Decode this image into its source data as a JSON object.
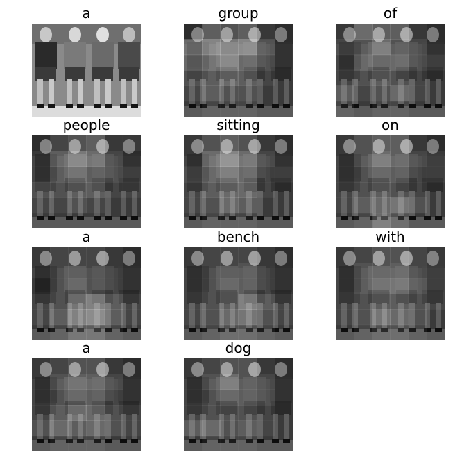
{
  "figure": {
    "title": "",
    "panels": [
      {
        "word": "a",
        "image": "original-photo",
        "attention": null
      },
      {
        "word": "group",
        "image": "attention-overlay",
        "attention": [
          [
            0.2,
            0.6,
            0.5,
            0.6,
            0.3,
            0.2
          ],
          [
            0.7,
            0.9,
            0.8,
            0.9,
            0.5,
            0.2
          ],
          [
            0.6,
            0.7,
            0.8,
            0.6,
            0.4,
            0.2
          ],
          [
            0.4,
            0.5,
            0.6,
            0.5,
            0.3,
            0.2
          ],
          [
            0.3,
            0.5,
            0.4,
            0.4,
            0.2,
            0.1
          ],
          [
            0.2,
            0.3,
            0.3,
            0.3,
            0.2,
            0.1
          ]
        ]
      },
      {
        "word": "of",
        "image": "attention-overlay",
        "attention": [
          [
            0.3,
            0.7,
            0.6,
            0.6,
            0.3,
            0.2
          ],
          [
            0.4,
            0.5,
            0.7,
            0.5,
            0.4,
            0.2
          ],
          [
            0.3,
            0.6,
            0.5,
            0.6,
            0.4,
            0.3
          ],
          [
            0.3,
            0.4,
            0.5,
            0.4,
            0.3,
            0.2
          ],
          [
            0.5,
            0.3,
            0.4,
            0.6,
            0.3,
            0.2
          ],
          [
            0.3,
            0.2,
            0.3,
            0.3,
            0.2,
            0.1
          ]
        ]
      },
      {
        "word": "people",
        "image": "attention-overlay",
        "attention": [
          [
            0.2,
            0.4,
            0.5,
            0.6,
            0.3,
            0.3
          ],
          [
            0.3,
            0.6,
            0.8,
            0.7,
            0.4,
            0.2
          ],
          [
            0.3,
            0.5,
            0.6,
            0.5,
            0.4,
            0.3
          ],
          [
            0.4,
            0.4,
            0.5,
            0.5,
            0.3,
            0.3
          ],
          [
            0.3,
            0.3,
            0.4,
            0.3,
            0.2,
            0.2
          ],
          [
            0.2,
            0.2,
            0.2,
            0.2,
            0.1,
            0.1
          ]
        ]
      },
      {
        "word": "sitting",
        "image": "attention-overlay",
        "attention": [
          [
            0.3,
            0.5,
            0.6,
            0.5,
            0.3,
            0.2
          ],
          [
            0.3,
            0.7,
            0.9,
            0.7,
            0.4,
            0.2
          ],
          [
            0.4,
            0.6,
            0.7,
            0.6,
            0.3,
            0.3
          ],
          [
            0.3,
            0.5,
            0.6,
            0.6,
            0.3,
            0.2
          ],
          [
            0.3,
            0.4,
            0.6,
            0.5,
            0.2,
            0.2
          ],
          [
            0.2,
            0.3,
            0.3,
            0.3,
            0.2,
            0.1
          ]
        ]
      },
      {
        "word": "on",
        "image": "attention-overlay",
        "attention": [
          [
            0.3,
            0.5,
            0.6,
            0.6,
            0.3,
            0.2
          ],
          [
            0.3,
            0.5,
            0.7,
            0.6,
            0.4,
            0.3
          ],
          [
            0.3,
            0.4,
            0.5,
            0.5,
            0.3,
            0.3
          ],
          [
            0.3,
            0.4,
            0.5,
            0.4,
            0.3,
            0.2
          ],
          [
            0.3,
            0.5,
            0.6,
            0.7,
            0.4,
            0.2
          ],
          [
            0.2,
            0.3,
            0.6,
            0.4,
            0.2,
            0.1
          ]
        ]
      },
      {
        "word": "a",
        "image": "attention-overlay",
        "attention": [
          [
            0.3,
            0.4,
            0.4,
            0.4,
            0.3,
            0.2
          ],
          [
            0.3,
            0.4,
            0.4,
            0.4,
            0.3,
            0.2
          ],
          [
            0.2,
            0.4,
            0.5,
            0.4,
            0.3,
            0.2
          ],
          [
            0.3,
            0.4,
            0.7,
            0.8,
            0.5,
            0.3
          ],
          [
            0.3,
            0.5,
            0.8,
            0.9,
            0.5,
            0.3
          ],
          [
            0.2,
            0.3,
            0.5,
            0.5,
            0.3,
            0.2
          ]
        ]
      },
      {
        "word": "bench",
        "image": "attention-overlay",
        "attention": [
          [
            0.3,
            0.4,
            0.4,
            0.4,
            0.3,
            0.2
          ],
          [
            0.3,
            0.4,
            0.4,
            0.5,
            0.3,
            0.2
          ],
          [
            0.3,
            0.4,
            0.5,
            0.5,
            0.3,
            0.2
          ],
          [
            0.3,
            0.4,
            0.5,
            0.8,
            0.5,
            0.3
          ],
          [
            0.3,
            0.4,
            0.6,
            0.7,
            0.4,
            0.3
          ],
          [
            0.2,
            0.3,
            0.4,
            0.4,
            0.3,
            0.2
          ]
        ]
      },
      {
        "word": "with",
        "image": "attention-overlay",
        "attention": [
          [
            0.3,
            0.4,
            0.5,
            0.5,
            0.4,
            0.3
          ],
          [
            0.3,
            0.5,
            0.5,
            0.6,
            0.4,
            0.3
          ],
          [
            0.3,
            0.5,
            0.6,
            0.7,
            0.5,
            0.3
          ],
          [
            0.3,
            0.4,
            0.5,
            0.5,
            0.4,
            0.3
          ],
          [
            0.3,
            0.4,
            0.7,
            0.6,
            0.4,
            0.2
          ],
          [
            0.2,
            0.3,
            0.4,
            0.4,
            0.3,
            0.2
          ]
        ]
      },
      {
        "word": "a",
        "image": "attention-overlay",
        "attention": [
          [
            0.3,
            0.4,
            0.5,
            0.5,
            0.3,
            0.2
          ],
          [
            0.3,
            0.5,
            0.6,
            0.6,
            0.4,
            0.2
          ],
          [
            0.3,
            0.4,
            0.5,
            0.5,
            0.3,
            0.2
          ],
          [
            0.3,
            0.5,
            0.7,
            0.6,
            0.4,
            0.3
          ],
          [
            0.4,
            0.6,
            0.5,
            0.6,
            0.4,
            0.3
          ],
          [
            0.2,
            0.3,
            0.3,
            0.3,
            0.2,
            0.1
          ]
        ]
      },
      {
        "word": "dog",
        "image": "attention-overlay",
        "attention": [
          [
            0.3,
            0.4,
            0.5,
            0.5,
            0.3,
            0.2
          ],
          [
            0.3,
            0.5,
            0.7,
            0.5,
            0.4,
            0.2
          ],
          [
            0.3,
            0.4,
            0.5,
            0.5,
            0.4,
            0.2
          ],
          [
            0.3,
            0.4,
            0.4,
            0.4,
            0.3,
            0.2
          ],
          [
            0.5,
            0.6,
            0.4,
            0.5,
            0.3,
            0.2
          ],
          [
            0.2,
            0.3,
            0.3,
            0.3,
            0.2,
            0.1
          ]
        ]
      }
    ]
  }
}
